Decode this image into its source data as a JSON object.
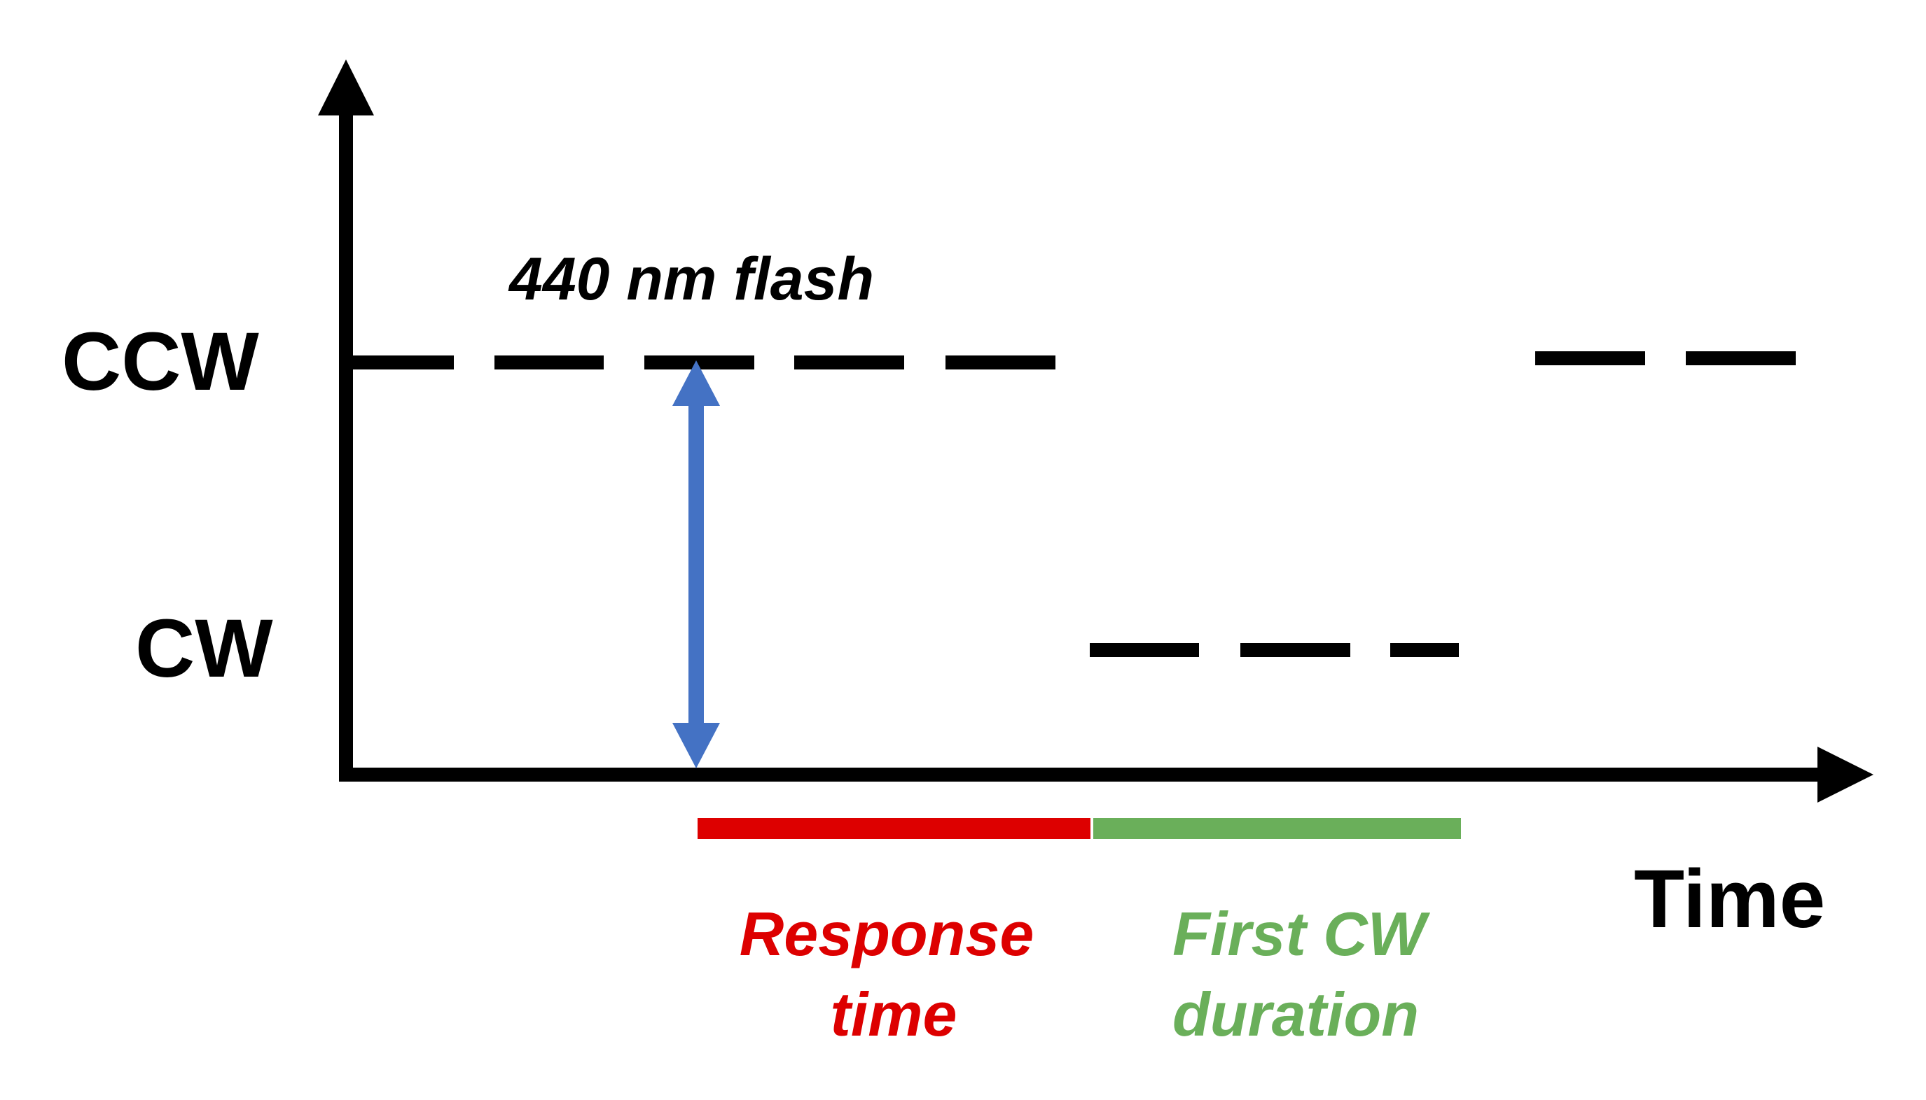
{
  "axes": {
    "y_upper_label": "CCW",
    "y_lower_label": "CW",
    "x_label": "Time"
  },
  "annotations": {
    "flash_label": "440 nm flash",
    "response_time_line1": "Response",
    "response_time_line2": "time",
    "first_cw_line1": "First CW",
    "first_cw_line2": "duration"
  },
  "colors": {
    "axis": "#000000",
    "state_dashes": "#000000",
    "flash_arrow": "#4472C4",
    "response_time": "#DD0000",
    "first_cw_duration": "#6AAF5A"
  }
}
